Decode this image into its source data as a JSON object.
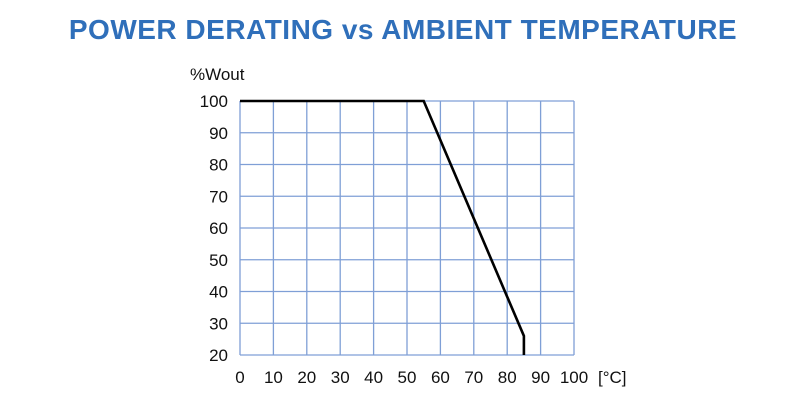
{
  "chart_data": {
    "type": "line",
    "title": "POWER DERATING vs AMBIENT TEMPERATURE",
    "ylabel": "%Wout",
    "xlabel": "",
    "x_unit_label": "[°C]",
    "xlim": [
      0,
      100
    ],
    "ylim": [
      20,
      100
    ],
    "xticks": [
      0,
      10,
      20,
      30,
      40,
      50,
      60,
      70,
      80,
      90,
      100
    ],
    "yticks": [
      20,
      30,
      40,
      50,
      60,
      70,
      80,
      90,
      100
    ],
    "grid": true,
    "series": [
      {
        "x": [
          0,
          55,
          85,
          85
        ],
        "y": [
          100,
          100,
          26,
          20
        ]
      }
    ],
    "colors": {
      "title": "#2f6fba",
      "grid": "#7f9fd6",
      "line": "#000000"
    }
  }
}
